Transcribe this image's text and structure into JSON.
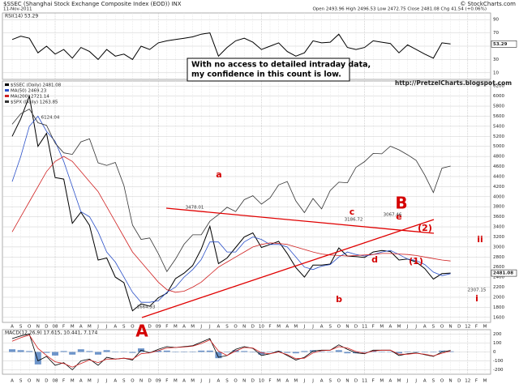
{
  "header": {
    "title": "$SSEC (Shanghai Stock Exchange Composite Index (EOD)) INX",
    "date": "11-Nov-2011",
    "quote": "Open 2493.96  High 2496.53  Low 2472.75  Close 2481.08  Chg 41.54 (+0.06%)",
    "source": "© StockCharts.com"
  },
  "annotations": {
    "note": [
      "With no access to detailed intraday data,",
      "my confidence in this count is low."
    ],
    "url": "http://PretzelCharts.blogspot.com",
    "waves": [
      "A",
      "a",
      "b",
      "B",
      "c",
      "d",
      "e",
      "(1)",
      "(2)",
      "i",
      "ii"
    ],
    "price_labels": [
      "6124.04",
      "1664.93",
      "3478.01",
      "3186.72",
      "3067.46",
      "2307.15"
    ]
  },
  "chart_data": [
    {
      "type": "line",
      "title": "RSI(14) 53.29",
      "ylim": [
        0,
        100
      ],
      "yticks": [
        10,
        30,
        50,
        70,
        90
      ],
      "grid": true,
      "series": [
        {
          "color": "#000000",
          "values": [
            60,
            65,
            62,
            40,
            50,
            38,
            45,
            32,
            48,
            42,
            30,
            45,
            35,
            38,
            30,
            50,
            45,
            55,
            58,
            60,
            62,
            64,
            68,
            70,
            35,
            48,
            58,
            62,
            56,
            45,
            50,
            55,
            42,
            35,
            40,
            58,
            55,
            56,
            68,
            48,
            45,
            48,
            58,
            56,
            54,
            40,
            52,
            45,
            38,
            32,
            55,
            53.29,
            null,
            null,
            null,
            null
          ]
        }
      ]
    },
    {
      "type": "line",
      "ylim": [
        1500,
        6300
      ],
      "yticks": [
        1600,
        1800,
        2000,
        2200,
        2400,
        2600,
        2800,
        3000,
        3200,
        3400,
        3600,
        3800,
        4000,
        4200,
        4400,
        4600,
        4800,
        5000,
        5200,
        5400,
        5600,
        5800,
        6000,
        6200
      ],
      "y2lim": [
        480,
        1690
      ],
      "grid": true,
      "legend": "top-left",
      "categories": [
        "A",
        "S",
        "O",
        "N",
        "D",
        "08",
        "F",
        "M",
        "A",
        "M",
        "J",
        "J",
        "A",
        "S",
        "O",
        "N",
        "D",
        "09",
        "F",
        "M",
        "A",
        "M",
        "J",
        "J",
        "A",
        "S",
        "O",
        "N",
        "D",
        "10",
        "F",
        "M",
        "A",
        "M",
        "J",
        "J",
        "A",
        "S",
        "O",
        "N",
        "D",
        "11",
        "F",
        "M",
        "A",
        "M",
        "J",
        "J",
        "A",
        "S",
        "O",
        "N",
        "D",
        "12",
        "F",
        "M"
      ],
      "series": [
        {
          "name": "$SSEC (Daily) 2481.08",
          "color": "#000000",
          "values": [
            5200,
            5550,
            6000,
            5000,
            5260,
            4380,
            4350,
            3470,
            3690,
            3430,
            2740,
            2780,
            2400,
            2290,
            1730,
            1870,
            1820,
            1990,
            2080,
            2370,
            2480,
            2630,
            2960,
            3410,
            2670,
            2780,
            2990,
            3200,
            3280,
            2990,
            3050,
            3110,
            2870,
            2590,
            2400,
            2640,
            2640,
            2660,
            2980,
            2820,
            2810,
            2790,
            2900,
            2930,
            2910,
            2740,
            2760,
            2700,
            2570,
            2360,
            2470,
            2481.08,
            null,
            null,
            null,
            null
          ]
        },
        {
          "name": "MA(50) 2469.23",
          "color": "#2b50c8",
          "values": [
            4300,
            4800,
            5400,
            5600,
            5300,
            5100,
            4700,
            4200,
            3700,
            3600,
            3300,
            2900,
            2700,
            2400,
            2100,
            1900,
            1900,
            1930,
            2100,
            2200,
            2400,
            2550,
            2750,
            3100,
            3100,
            2900,
            2900,
            3100,
            3200,
            3150,
            3050,
            3050,
            3000,
            2800,
            2600,
            2550,
            2620,
            2650,
            2800,
            2900,
            2850,
            2820,
            2850,
            2900,
            2930,
            2850,
            2760,
            2730,
            2650,
            2500,
            2430,
            2469.23,
            null,
            null,
            null,
            null
          ]
        },
        {
          "name": "MA(200) 2721.14",
          "color": "#d02020",
          "values": [
            3300,
            3600,
            3900,
            4200,
            4500,
            4700,
            4800,
            4700,
            4500,
            4300,
            4100,
            3800,
            3500,
            3200,
            2900,
            2700,
            2500,
            2300,
            2150,
            2100,
            2120,
            2200,
            2300,
            2450,
            2600,
            2700,
            2800,
            2900,
            3000,
            3050,
            3080,
            3070,
            3050,
            3000,
            2950,
            2900,
            2860,
            2840,
            2830,
            2820,
            2830,
            2840,
            2850,
            2870,
            2870,
            2860,
            2850,
            2830,
            2800,
            2770,
            2740,
            2721.14,
            null,
            null,
            null,
            null
          ]
        },
        {
          "name": "$SPX (Daily) 1263.85",
          "color": "#333333",
          "axis": "y2",
          "values": [
            1473,
            1526,
            1549,
            1481,
            1468,
            1378,
            1330,
            1322,
            1385,
            1400,
            1280,
            1267,
            1282,
            1166,
            968,
            896,
            903,
            825,
            735,
            797,
            872,
            919,
            919,
            987,
            1020,
            1057,
            1036,
            1095,
            1115,
            1073,
            1104,
            1169,
            1186,
            1089,
            1030,
            1101,
            1049,
            1141,
            1183,
            1180,
            1257,
            1286,
            1327,
            1325,
            1363,
            1345,
            1320,
            1292,
            1218,
            1131,
            1253,
            1263.85,
            null,
            null,
            null,
            null
          ]
        }
      ]
    },
    {
      "type": "line",
      "title": "MACD(12,26,9) 17.615, 10.441, 7.174",
      "ylim": [
        -250,
        250
      ],
      "yticks": [
        -200,
        -100,
        0,
        100,
        200
      ],
      "grid": true,
      "series": [
        {
          "type": "bar",
          "color": "#4a7bbd",
          "values": [
            30,
            20,
            10,
            -140,
            -10,
            -40,
            10,
            -30,
            30,
            10,
            -30,
            20,
            0,
            0,
            -10,
            40,
            0,
            15,
            15,
            0,
            5,
            5,
            15,
            15,
            -70,
            0,
            20,
            10,
            -5,
            -30,
            0,
            10,
            -10,
            -15,
            10,
            20,
            5,
            0,
            20,
            -15,
            -15,
            -5,
            10,
            0,
            0,
            -15,
            5,
            5,
            -5,
            -5,
            15,
            7.174,
            null,
            null,
            null,
            null
          ]
        },
        {
          "color": "#000000",
          "values": [
            150,
            180,
            200,
            -100,
            -50,
            -150,
            -120,
            -200,
            -100,
            -80,
            -150,
            -60,
            -80,
            -70,
            -90,
            20,
            -10,
            30,
            60,
            50,
            60,
            70,
            110,
            150,
            -60,
            -40,
            30,
            60,
            40,
            -40,
            -20,
            10,
            -40,
            -90,
            -60,
            10,
            20,
            20,
            80,
            30,
            -10,
            -20,
            20,
            20,
            20,
            -40,
            -20,
            -10,
            -30,
            -50,
            0,
            17.615,
            null,
            null,
            null,
            null
          ]
        },
        {
          "color": "#d02020",
          "values": [
            120,
            160,
            190,
            40,
            -40,
            -110,
            -130,
            -170,
            -130,
            -90,
            -120,
            -80,
            -80,
            -70,
            -80,
            -20,
            -10,
            15,
            45,
            50,
            55,
            65,
            95,
            135,
            10,
            -40,
            10,
            50,
            45,
            -10,
            -20,
            0,
            -30,
            -75,
            -70,
            -10,
            15,
            20,
            60,
            45,
            5,
            -15,
            10,
            20,
            20,
            -25,
            -25,
            -15,
            -25,
            -45,
            -15,
            10.441,
            null,
            null,
            null,
            null
          ]
        }
      ]
    }
  ]
}
